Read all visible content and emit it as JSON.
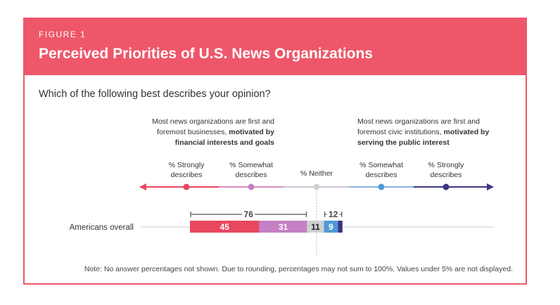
{
  "figure": {
    "label": "FIGURE 1",
    "title": "Perceived Priorities of U.S. News Organizations",
    "question": "Which of the following best describes your opinion?"
  },
  "poles": {
    "left": {
      "line1": "Most news organizations are first and",
      "line2_plain": "foremost businesses, ",
      "line2_bold": "motivated by",
      "line3_bold": "financial interests and goals"
    },
    "right": {
      "line1": "Most news organizations are first and",
      "line2_plain": "foremost civic institutions, ",
      "line2_bold": "motivated by",
      "line3_bold": "serving the public interest"
    }
  },
  "scale": {
    "points": [
      {
        "line1": "% Strongly",
        "line2": "describes",
        "color": "#e8485f"
      },
      {
        "line1": "% Somewhat",
        "line2": "describes",
        "color": "#c580c5"
      },
      {
        "line1": "% Neither",
        "line2": "",
        "color": "#d0d0d0"
      },
      {
        "line1": "% Somewhat",
        "line2": "describes",
        "color": "#4f9ad6"
      },
      {
        "line1": "% Strongly",
        "line2": "describes",
        "color": "#3b3585"
      }
    ]
  },
  "chart_data": {
    "type": "bar",
    "orientation": "horizontal-stacked",
    "categories": [
      "Americans overall"
    ],
    "series": [
      {
        "name": "% Strongly describes (businesses)",
        "values": [
          45
        ],
        "color": "#e8485f"
      },
      {
        "name": "% Somewhat describes (businesses)",
        "values": [
          31
        ],
        "color": "#c580c5"
      },
      {
        "name": "% Neither",
        "values": [
          11
        ],
        "color": "#d0d0d0"
      },
      {
        "name": "% Somewhat describes (civic institutions)",
        "values": [
          9
        ],
        "color": "#4f9ad6"
      },
      {
        "name": "% Strongly describes (civic institutions)",
        "values": [
          3
        ],
        "color": "#3b3585"
      }
    ],
    "segment_labels": [
      "45",
      "31",
      "11",
      "9",
      ""
    ],
    "brackets": [
      {
        "label": "76",
        "from_series": 0,
        "to_series": 1
      },
      {
        "label": "12",
        "from_series": 3,
        "to_series": 4
      }
    ],
    "xlim": [
      0,
      100
    ]
  },
  "note": "Note: No answer percentages not shown. Due to rounding, percentages may not sum to 100%. Values under 5% are not displayed.",
  "colors": {
    "accent": "#ee5769",
    "bracket": "#555555"
  }
}
